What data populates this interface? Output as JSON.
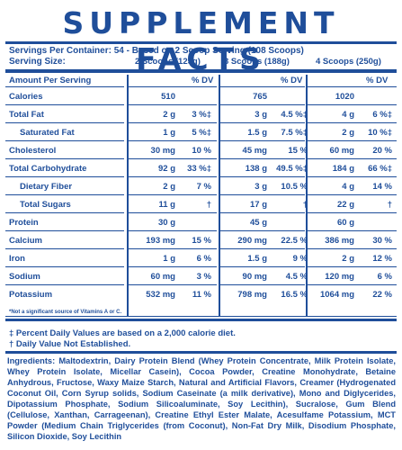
{
  "title": "SUPPLEMENT FACTS",
  "servings_per_container": "Servings Per Container: 54 - Based on 2 Scoop Serving (108 Scoops)",
  "serving_size_label": "Serving Size:",
  "serving_options": [
    "2 Scoops (125g)",
    "3 Scoops (188g)",
    "4 Scoops (250g)"
  ],
  "header": {
    "amount": "Amount Per Serving",
    "dv": "% DV"
  },
  "rows": [
    {
      "name": "Calories",
      "indent": false,
      "v": [
        [
          "510",
          ""
        ],
        [
          "765",
          ""
        ],
        [
          "1020",
          ""
        ]
      ]
    },
    {
      "name": "Total Fat",
      "indent": false,
      "v": [
        [
          "2 g",
          "3 %‡"
        ],
        [
          "3 g",
          "4.5 %‡"
        ],
        [
          "4 g",
          "6 %‡"
        ]
      ]
    },
    {
      "name": "Saturated Fat",
      "indent": true,
      "v": [
        [
          "1 g",
          "5 %‡"
        ],
        [
          "1.5 g",
          "7.5 %‡"
        ],
        [
          "2 g",
          "10 %‡"
        ]
      ]
    },
    {
      "name": "Cholesterol",
      "indent": false,
      "v": [
        [
          "30 mg",
          "10 %"
        ],
        [
          "45 mg",
          "15 %"
        ],
        [
          "60 mg",
          "20 %"
        ]
      ]
    },
    {
      "name": "Total Carbohydrate",
      "indent": false,
      "v": [
        [
          "92 g",
          "33 %‡"
        ],
        [
          "138 g",
          "49.5 %‡"
        ],
        [
          "184 g",
          "66 %‡"
        ]
      ]
    },
    {
      "name": "Dietary Fiber",
      "indent": true,
      "v": [
        [
          "2 g",
          "7 %"
        ],
        [
          "3 g",
          "10.5 %"
        ],
        [
          "4 g",
          "14 %"
        ]
      ]
    },
    {
      "name": "Total Sugars",
      "indent": true,
      "v": [
        [
          "11 g",
          "†"
        ],
        [
          "17 g",
          "†"
        ],
        [
          "22 g",
          "†"
        ]
      ]
    },
    {
      "name": "Protein",
      "indent": false,
      "v": [
        [
          "30 g",
          ""
        ],
        [
          "45 g",
          ""
        ],
        [
          "60 g",
          ""
        ]
      ]
    },
    {
      "name": "Calcium",
      "indent": false,
      "v": [
        [
          "193 mg",
          "15 %"
        ],
        [
          "290 mg",
          "22.5 %"
        ],
        [
          "386 mg",
          "30 %"
        ]
      ]
    },
    {
      "name": "Iron",
      "indent": false,
      "v": [
        [
          "1 g",
          "6 %"
        ],
        [
          "1.5 g",
          "9 %"
        ],
        [
          "2 g",
          "12 %"
        ]
      ]
    },
    {
      "name": "Sodium",
      "indent": false,
      "v": [
        [
          "60 mg",
          "3 %"
        ],
        [
          "90 mg",
          "4.5 %"
        ],
        [
          "120 mg",
          "6 %"
        ]
      ]
    },
    {
      "name": "Potassium",
      "indent": false,
      "v": [
        [
          "532 mg",
          "11 %"
        ],
        [
          "798 mg",
          "16.5 %"
        ],
        [
          "1064 mg",
          "22 %"
        ]
      ]
    }
  ],
  "not_significant": "*Not a significant source of Vitamins A or C.",
  "legend_percent": "‡ Percent Daily Values are based on a 2,000 calorie diet.",
  "legend_dagger": "† Daily Value Not Established.",
  "ingredients_label": "Ingredients:",
  "ingredients_text": "Maltodextrin, Dairy Protein Blend (Whey Protein Concentrate, Milk Protein Isolate, Whey Protein Isolate, Micellar Casein), Cocoa Powder, Creatine Monohydrate, Betaine Anhydrous, Fructose, Waxy Maize Starch, Natural and Artificial Flavors, Creamer (Hydrogenated Coconut Oil, Corn Syrup solids, Sodium Caseinate (a milk derivative), Mono and Diglycerides, Dipotassium Phosphate, Sodium Silicoaluminate, Soy Lecithin), Sucralose, Gum Blend (Cellulose, Xanthan, Carrageenan), Creatine Ethyl Ester Malate, Acesulfame Potassium, MCT Powder (Medium Chain Triglycerides (from Coconut), Non-Fat Dry Milk, Disodium Phosphate, Silicon Dioxide, Soy Lecithin",
  "colors": {
    "ink": "#1f4e9a",
    "background": "#ffffff"
  }
}
